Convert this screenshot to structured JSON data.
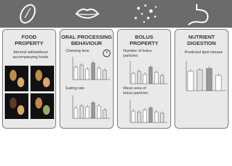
{
  "panels": [
    {
      "title": [
        "FOOD",
        "PROPERTY"
      ],
      "items": [
        "Almond with/without accompanying foods"
      ]
    },
    {
      "title": [
        "ORAL PROCESSING",
        "BEHAVIOUR"
      ],
      "items": [
        "Chewing time",
        "Eating rate"
      ]
    },
    {
      "title": [
        "BOLUS",
        "PROPERTY"
      ],
      "items": [
        "Number of bolus particles",
        "Mean area of bolus particles"
      ]
    },
    {
      "title": [
        "NUTRIENT",
        "DIGESTION"
      ],
      "items": [
        "Predicted lipid release"
      ]
    }
  ]
}
